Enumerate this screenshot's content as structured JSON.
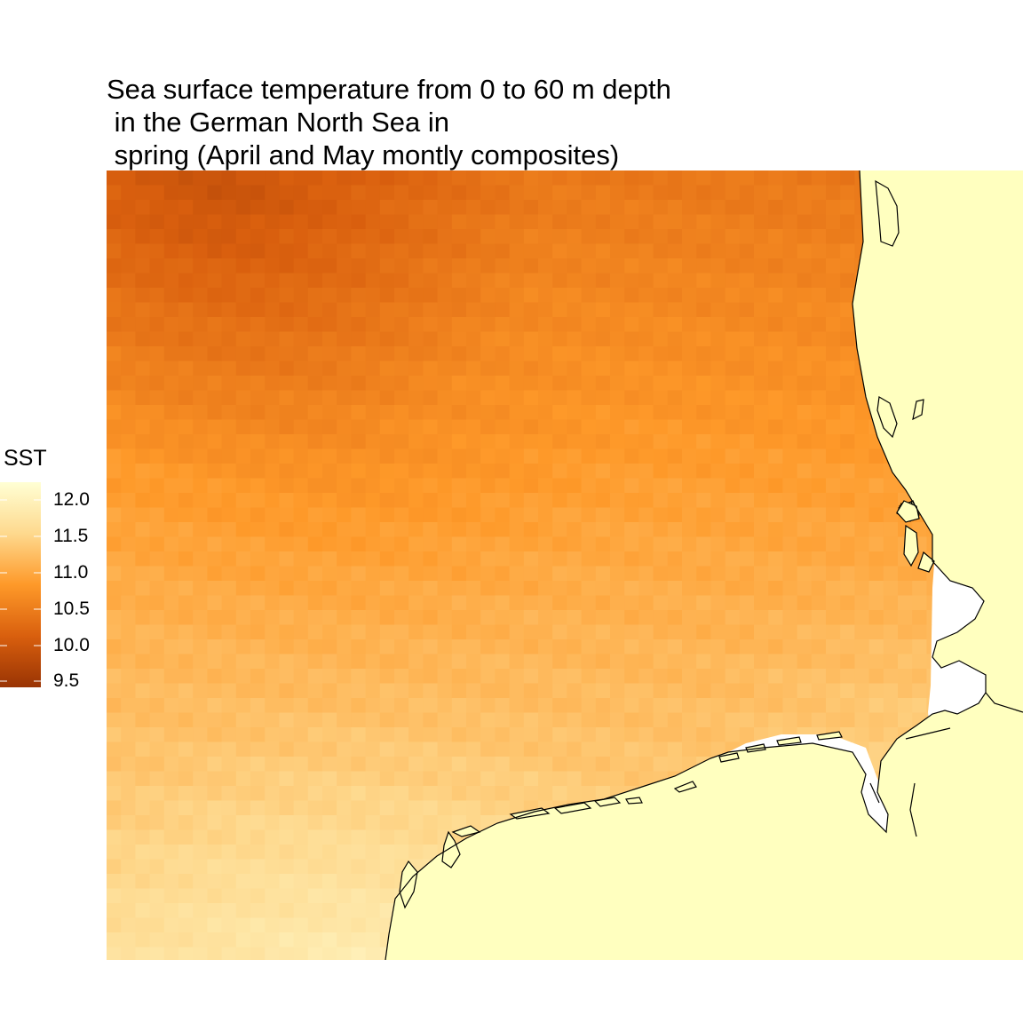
{
  "title": "Sea surface temperature from 0 to 60 m depth\n in the German North Sea in\n spring (April and May montly composites)",
  "legend": {
    "title": "SST",
    "breaks": [
      "12.0",
      "11.5",
      "11.0",
      "10.5",
      "10.0",
      "9.5"
    ],
    "range": [
      9.4,
      12.2
    ],
    "palette": [
      "#993404",
      "#d95f0e",
      "#fe9929",
      "#fed98e",
      "#ffffd4"
    ]
  },
  "colors": {
    "land": "#ffffbf",
    "coastline": "#000000",
    "nodata": "#ffffff"
  }
}
